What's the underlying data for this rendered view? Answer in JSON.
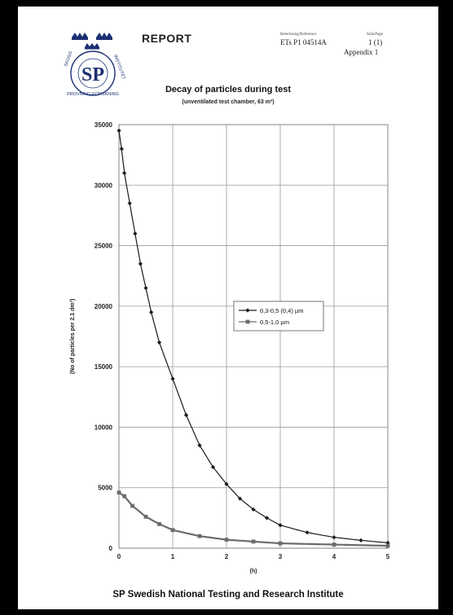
{
  "header": {
    "report_label": "REPORT",
    "ref_caption": "Beteckning/Reference",
    "ref_value": "ETs P1 04514A",
    "page_caption": "Sida/Page",
    "page_value": "1 (1)",
    "appendix": "Appendix 1",
    "logo_text": "SP",
    "logo_ring_left": "SKOGS",
    "logo_ring_right": "INSTITUTET",
    "logo_ring_bottom": "PROVNING-FORSKNING"
  },
  "footer": {
    "institute": "SP Swedish National Testing and Research Institute"
  },
  "colors": {
    "series1": "#1a1a1a",
    "series2": "#6b6b6b",
    "grid": "#999999"
  },
  "chart_data": {
    "type": "scatter",
    "title": "Decay of particles during test",
    "subtitle": "(unventilated test chamber, 63 m³)",
    "xlabel": "(h)",
    "ylabel": "(No of particles per 2.1 dm³)",
    "xlim": [
      0,
      5
    ],
    "ylim": [
      0,
      35000
    ],
    "xticks": [
      "0",
      "1",
      "2",
      "3",
      "4",
      "5"
    ],
    "yticks": [
      "0",
      "5000",
      "10000",
      "15000",
      "20000",
      "25000",
      "30000",
      "35000"
    ],
    "grid": true,
    "legend_position": "center-right",
    "series": [
      {
        "name": "0,3-0,5 (0,4) µm",
        "marker": "diamond",
        "x": [
          0,
          0.05,
          0.1,
          0.2,
          0.3,
          0.4,
          0.5,
          0.6,
          0.75,
          1.0,
          1.25,
          1.5,
          1.75,
          2.0,
          2.25,
          2.5,
          2.75,
          3.0,
          3.5,
          4.0,
          4.5,
          5.0
        ],
        "y": [
          34500,
          33000,
          31000,
          28500,
          26000,
          23500,
          21500,
          19500,
          17000,
          14000,
          11000,
          8500,
          6700,
          5300,
          4100,
          3200,
          2500,
          1900,
          1300,
          900,
          650,
          450
        ]
      },
      {
        "name": "0,5-1,0 µm",
        "marker": "square",
        "x": [
          0,
          0.1,
          0.25,
          0.5,
          0.75,
          1.0,
          1.5,
          2.0,
          2.5,
          3.0,
          4.0,
          5.0
        ],
        "y": [
          4600,
          4300,
          3500,
          2600,
          2000,
          1500,
          1000,
          700,
          550,
          400,
          300,
          200
        ]
      }
    ]
  }
}
